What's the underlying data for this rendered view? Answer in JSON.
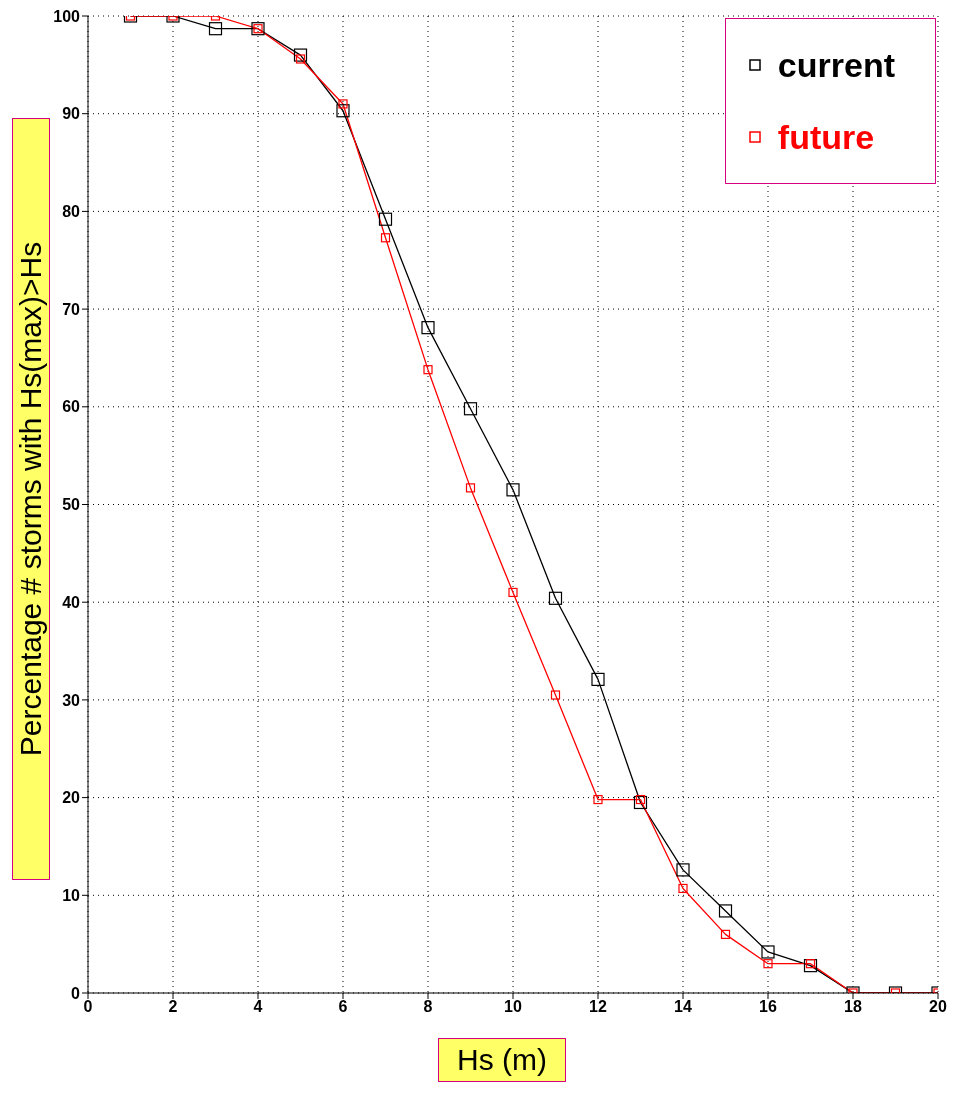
{
  "chart_data": {
    "type": "line",
    "xlabel": "Hs (m)",
    "ylabel": "Percentage # storms with Hs(max)>Hs",
    "x": [
      1,
      2,
      3,
      4,
      5,
      6,
      7,
      8,
      9,
      10,
      11,
      12,
      13,
      14,
      15,
      16,
      17,
      18,
      19,
      20
    ],
    "series": [
      {
        "name": "current",
        "color": "#000000",
        "values": [
          100,
          100,
          98.7,
          98.7,
          96,
          90.3,
          79.2,
          68.1,
          59.8,
          51.5,
          40.4,
          32.1,
          19.5,
          12.6,
          8.4,
          4.2,
          2.8,
          0,
          0,
          0
        ]
      },
      {
        "name": "future",
        "color": "#ff0000",
        "values": [
          100,
          100,
          100,
          98.7,
          95.6,
          91,
          77.3,
          63.8,
          51.7,
          41,
          30.5,
          19.8,
          19.8,
          10.7,
          6,
          3,
          3,
          0,
          0,
          0
        ]
      }
    ],
    "xlim": [
      0,
      20
    ],
    "xticks": [
      0,
      2,
      4,
      6,
      8,
      10,
      12,
      14,
      16,
      18,
      20
    ],
    "ylim": [
      0,
      100
    ],
    "yticks": [
      0,
      10,
      20,
      30,
      40,
      50,
      60,
      70,
      80,
      90,
      100
    ],
    "grid": true,
    "legend": "top right",
    "marker": "square",
    "line_style": "solid"
  }
}
